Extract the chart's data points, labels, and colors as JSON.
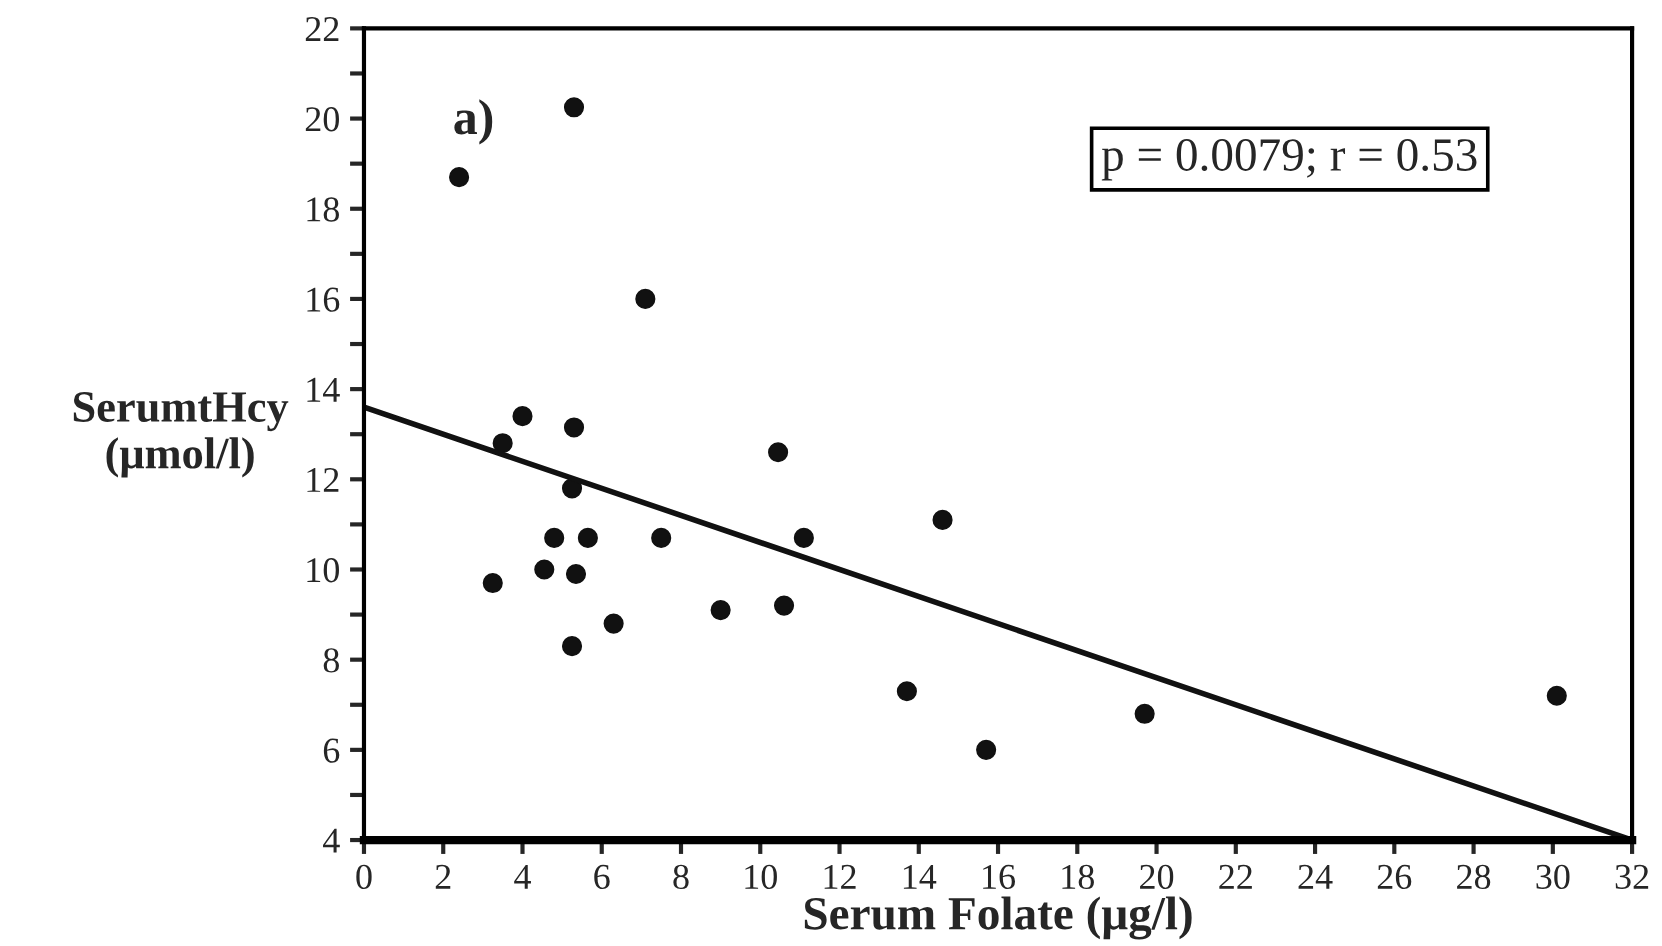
{
  "chart_data": {
    "type": "scatter",
    "xlabel": "Serum Folate (μg/l)",
    "ylabel": "SerumtHcy\n(μmol/l)",
    "annotations": [
      "a)",
      "p = 0.0079; r = 0.53"
    ],
    "series": [
      {
        "marker": "circle",
        "color": "#111111",
        "x": [
          5.3,
          2.4,
          7.1,
          4.0,
          5.3,
          3.5,
          10.45,
          5.25,
          4.8,
          5.65,
          7.5,
          11.1,
          14.6,
          4.55,
          5.35,
          3.25,
          9.0,
          10.6,
          6.3,
          5.25,
          13.7,
          15.7,
          19.7,
          30.1
        ],
        "values": [
          20.25,
          18.7,
          16.0,
          13.4,
          13.15,
          12.8,
          12.6,
          11.8,
          10.7,
          10.7,
          10.7,
          10.7,
          11.1,
          10.0,
          9.9,
          9.7,
          9.1,
          9.2,
          8.8,
          8.3,
          7.3,
          6.0,
          6.8,
          7.2
        ]
      },
      {
        "type": "line",
        "color": "#111111",
        "x": [
          0,
          32
        ],
        "values": [
          13.6,
          4.0
        ]
      }
    ],
    "xlim": [
      0,
      32
    ],
    "xticks": [
      0,
      2,
      4,
      6,
      8,
      10,
      12,
      14,
      16,
      18,
      20,
      22,
      24,
      26,
      28,
      30,
      32
    ],
    "ylim": [
      4,
      22
    ],
    "yticks": [
      4,
      {
        "value": 5,
        "label": null
      },
      6,
      {
        "value": 7,
        "label": null
      },
      8,
      {
        "value": 9,
        "label": null
      },
      10,
      {
        "value": 11,
        "label": null
      },
      12,
      {
        "value": 13,
        "label": null
      },
      14,
      {
        "value": 15,
        "label": null
      },
      16,
      {
        "value": 17,
        "label": null
      },
      18,
      {
        "value": 19,
        "label": null
      },
      20,
      {
        "value": 21,
        "label": null
      },
      22
    ],
    "grid": false
  }
}
